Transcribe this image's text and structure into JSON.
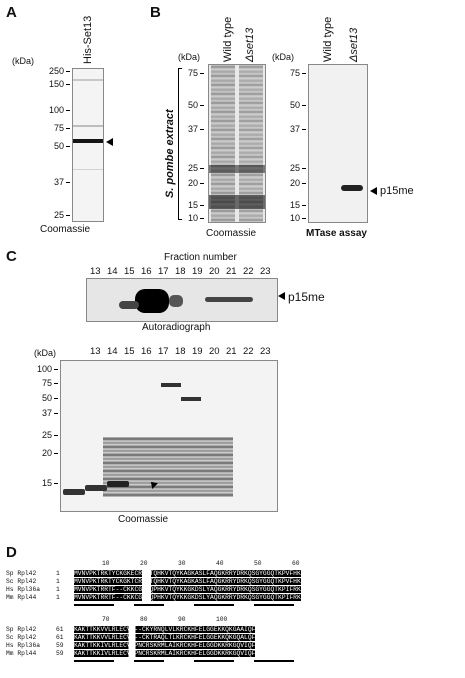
{
  "panels": {
    "A": {
      "letter": "A",
      "lane_label": "His-Set13",
      "kda_label": "(kDa)",
      "markers": [
        "250",
        "150",
        "100",
        "75",
        "50",
        "37",
        "25"
      ],
      "caption": "Coomassie"
    },
    "B": {
      "letter": "B",
      "lanes": [
        "Wild type",
        "Δset13"
      ],
      "lanes2": [
        "Wild type",
        "Δset13"
      ],
      "kda_label": "(kDa)",
      "kda_label2": "(kDa)",
      "side_label": "S. pombe extract",
      "markers": [
        "75",
        "50",
        "37",
        "25",
        "20",
        "15",
        "10"
      ],
      "markers2": [
        "75",
        "50",
        "37",
        "25",
        "20",
        "15",
        "10"
      ],
      "caption_left": "Coomassie",
      "caption_right": "MTase assay",
      "band_label": "p15me"
    },
    "C": {
      "letter": "C",
      "fraction_title": "Fraction number",
      "fractions": [
        "13",
        "14",
        "15",
        "16",
        "17",
        "18",
        "19",
        "20",
        "21",
        "22",
        "23"
      ],
      "fractions2": [
        "13",
        "14",
        "15",
        "16",
        "17",
        "18",
        "19",
        "20",
        "21",
        "22",
        "23"
      ],
      "band_label": "p15me",
      "caption_top": "Autoradiograph",
      "kda_label": "(kDa)",
      "markers": [
        "100",
        "75",
        "50",
        "37",
        "25",
        "20",
        "15"
      ],
      "caption_bottom": "Coomassie"
    },
    "D": {
      "letter": "D",
      "block1": {
        "numbers": [
          "10",
          "20",
          "30",
          "40",
          "50",
          "60"
        ],
        "rows": [
          {
            "name": "Sp Rpl42",
            "start": "1",
            "seq": "MVNVPKTRKTYCKGKECRKHTQHKVTQYKAGKASLFAQGKRRYDRKQSGYGGQTKPVFHK"
          },
          {
            "name": "Sc Rpl42",
            "start": "1",
            "seq": "MVNVPKTRKTYCKGKTCRKHTQHKVTQYKAGKASLFAQGKRRYDRKQSGYGGQTKPVFHK"
          },
          {
            "name": "Hs Rpl36a",
            "start": "1",
            "seq": "MVNVPKTRRTF--CKKCGKHQPHKVTQYKKGKDSLYAQGKRRYDRKQSGYGGQTKPIFRK"
          },
          {
            "name": "Mm Rpl44",
            "start": "1",
            "seq": "MVNVPKTRRTF--CKKCGKHQPHKVTQYKKGKDSLYAQGKRRYDRKQSGYGGQTKPIFRK"
          }
        ]
      },
      "block2": {
        "numbers": [
          "70",
          "80",
          "90",
          "100"
        ],
        "rows": [
          {
            "name": "Sp Rpl42",
            "start": "61",
            "seq": "KAKTTKKVVLRLECVS--CKYRNQLVLKRCKHFELGGEKKQKGAAIQF"
          },
          {
            "name": "Sc Rpl42",
            "start": "61",
            "seq": "KAKTTKKVVLRLECVK--CKTRAQLTLKRCKHFELGGEKKQKGQALQF"
          },
          {
            "name": "Hs Rpl36a",
            "start": "59",
            "seq": "KAKTTKKIVLRLECVEPNCRSKRMLAIKRCKHFELGGDKKRKGQVIQF"
          },
          {
            "name": "Mm Rpl44",
            "start": "59",
            "seq": "KAKTTKKIVLRLECVEPNCRSKRMLAIKRCKHFELGGDKKRKGQVIQF"
          }
        ]
      }
    }
  }
}
